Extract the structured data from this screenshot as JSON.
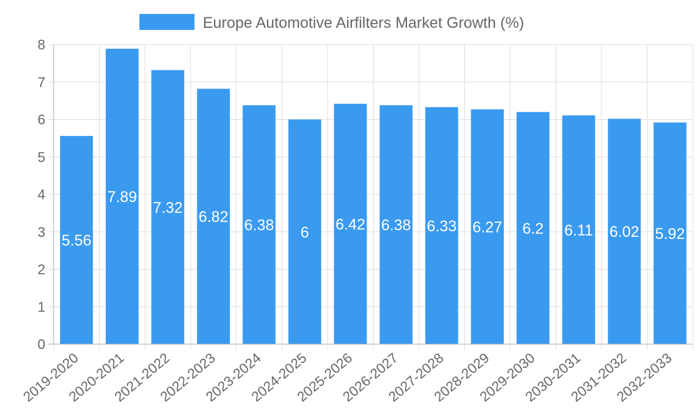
{
  "chart_data": {
    "type": "bar",
    "title": "",
    "legend": {
      "position": "top",
      "label": "Europe Automotive Airfilters Market Growth (%)"
    },
    "categories": [
      "2019-2020",
      "2020-2021",
      "2021-2022",
      "2022-2023",
      "2023-2024",
      "2024-2025",
      "2025-2026",
      "2026-2027",
      "2027-2028",
      "2028-2029",
      "2029-2030",
      "2030-2031",
      "2031-2032",
      "2032-2033"
    ],
    "series": [
      {
        "name": "Europe Automotive Airfilters Market Growth (%)",
        "values": [
          5.56,
          7.89,
          7.32,
          6.82,
          6.38,
          6,
          6.42,
          6.38,
          6.33,
          6.27,
          6.2,
          6.11,
          6.02,
          5.92
        ],
        "color": "#3a9af0"
      }
    ],
    "data_labels": [
      "5.56",
      "7.89",
      "7.32",
      "6.82",
      "6.38",
      "6",
      "6.42",
      "6.38",
      "6.33",
      "6.27",
      "6.2",
      "6.11",
      "6.02",
      "5.92"
    ],
    "xlabel": "",
    "ylabel": "",
    "ylim": [
      0,
      8
    ],
    "yticks": [
      "0",
      "1",
      "2",
      "3",
      "4",
      "5",
      "6",
      "7",
      "8"
    ],
    "grid": true
  },
  "colors": {
    "bar": "#3a9af0",
    "grid": "#e0e0e0",
    "axis": "#b0b0b0",
    "tick_text": "#666666",
    "bar_label": "#ffffff"
  }
}
